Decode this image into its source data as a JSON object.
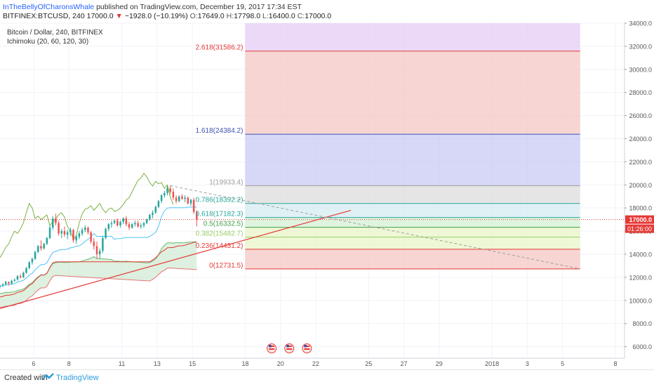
{
  "header": {
    "author": "InTheBellyOfCharonsWhale",
    "published": "published on TradingView.com, December 19, 2017 17:34 EST",
    "symbol": "BITFINEX:BTCUSD, 240",
    "last": "17000.0",
    "change": "−1928.0 (−10.19%)",
    "o_label": "O:",
    "o": "17649.0",
    "h_label": "H:",
    "h": "17798.0",
    "l_label": "L:",
    "l": "16400.0",
    "c_label": "C:",
    "c": "17000.0"
  },
  "legend": {
    "title": "Bitcoin / Dollar, 240, BITFINEX",
    "indicator": "Ichimoku (20, 60, 120, 30)"
  },
  "footer": {
    "created_with": "Created with",
    "brand": "TradingView"
  },
  "colors": {
    "up": "#26a69a",
    "down": "#ef5350",
    "kijun": "#e53935",
    "tenkan": "#4fc3f7",
    "chikou": "#7cb342",
    "cloud": "#c8e6c9",
    "trend": "#e53935"
  },
  "chart_data": {
    "type": "candlestick",
    "y_range": [
      5000,
      34000
    ],
    "y_ticks": [
      "34000.0",
      "32000.0",
      "30000.0",
      "28000.0",
      "26000.0",
      "24000.0",
      "22000.0",
      "20000.0",
      "18000.0",
      "16000.0",
      "14000.0",
      "12000.0",
      "10000.0",
      "8000.0",
      "6000.0"
    ],
    "y_tick_values": [
      34000,
      32000,
      30000,
      28000,
      26000,
      24000,
      22000,
      20000,
      18000,
      16000,
      14000,
      12000,
      10000,
      8000,
      6000
    ],
    "x_ticks": [
      "6",
      "8",
      "11",
      "13",
      "15",
      "18",
      "20",
      "22",
      "25",
      "27",
      "29",
      "2018",
      "3",
      "5",
      "8"
    ],
    "x_tick_dates": [
      "2017-12-06",
      "2017-12-08",
      "2017-12-11",
      "2017-12-13",
      "2017-12-15",
      "2017-12-18",
      "2017-12-20",
      "2017-12-22",
      "2017-12-25",
      "2017-12-27",
      "2017-12-29",
      "2018-01-01",
      "2018-01-03",
      "2018-01-05",
      "2018-01-08"
    ],
    "price_label": "17000.0",
    "countdown_label": "01:26:00",
    "fib_levels": [
      {
        "ratio": "0",
        "price": 12731.5,
        "text": "0(12731.5)",
        "color": "#e53935",
        "fill": "#f4c7c3"
      },
      {
        "ratio": "0.236",
        "price": 14431.2,
        "text": "0.236(14431.2)",
        "color": "#e53935",
        "fill": "#e8f5c8"
      },
      {
        "ratio": "0.382",
        "price": 15482.7,
        "text": "0.382(15482.7)",
        "color": "#9ccc65",
        "fill": "#e8f5c8"
      },
      {
        "ratio": "0.5",
        "price": 16332.5,
        "text": "0.5(16332.5)",
        "color": "#43a047",
        "fill": "#d4f0d4"
      },
      {
        "ratio": "0.618",
        "price": 17182.3,
        "text": "0.618(17182.3)",
        "color": "#26a69a",
        "fill": "#d6ecf2"
      },
      {
        "ratio": "0.786",
        "price": 18392.2,
        "text": "0.786(18392.2)",
        "color": "#26a69a",
        "fill": "#dcdcdc"
      },
      {
        "ratio": "1",
        "price": 19933.4,
        "text": "1(19933.4)",
        "color": "#9e9e9e",
        "fill": "#c9caf4"
      },
      {
        "ratio": "1.618",
        "price": 24384.2,
        "text": "1.618(24384.2)",
        "color": "#3f51b5",
        "fill": "#f4c7c3"
      },
      {
        "ratio": "2.618",
        "price": 31586.2,
        "text": "2.618(31586.2)",
        "color": "#e53935",
        "fill": "#e6ccf5"
      }
    ],
    "fib_top_price": 34000,
    "fib_start_date": "2017-12-18T00:00",
    "fib_end_date": "2018-01-06T00:00",
    "candles_start": "2017-12-04T00:00",
    "candle_hours": 4,
    "ohlc": [
      [
        11200,
        11400,
        11000,
        11300
      ],
      [
        11300,
        11500,
        11200,
        11400
      ],
      [
        11400,
        11700,
        11300,
        11600
      ],
      [
        11600,
        11650,
        11300,
        11450
      ],
      [
        11450,
        11800,
        11400,
        11700
      ],
      [
        11700,
        11900,
        11600,
        11800
      ],
      [
        11800,
        12200,
        11700,
        12100
      ],
      [
        12100,
        12300,
        11900,
        12000
      ],
      [
        12000,
        12500,
        11950,
        12400
      ],
      [
        12400,
        12900,
        12300,
        12800
      ],
      [
        12800,
        13400,
        12700,
        13300
      ],
      [
        13300,
        13700,
        13100,
        13600
      ],
      [
        13600,
        14300,
        13500,
        14200
      ],
      [
        14200,
        14800,
        14100,
        14700
      ],
      [
        14700,
        15200,
        14300,
        14500
      ],
      [
        14500,
        15000,
        14400,
        14900
      ],
      [
        14900,
        15500,
        14800,
        15400
      ],
      [
        15400,
        16500,
        15300,
        16300
      ],
      [
        16300,
        17300,
        16100,
        17100
      ],
      [
        17100,
        17500,
        16500,
        16700
      ],
      [
        16700,
        16900,
        15600,
        15800
      ],
      [
        15800,
        16200,
        15400,
        16000
      ],
      [
        16000,
        16400,
        15500,
        15700
      ],
      [
        15700,
        16100,
        15300,
        15900
      ],
      [
        15900,
        16300,
        15600,
        16100
      ],
      [
        16100,
        16200,
        15000,
        15200
      ],
      [
        15200,
        15700,
        14900,
        15500
      ],
      [
        15500,
        16000,
        15300,
        15800
      ],
      [
        15800,
        16300,
        15600,
        16100
      ],
      [
        16100,
        16500,
        15900,
        16300
      ],
      [
        16300,
        16400,
        15700,
        15900
      ],
      [
        15900,
        16000,
        14900,
        15100
      ],
      [
        15100,
        15400,
        14400,
        14700
      ],
      [
        14700,
        15100,
        13600,
        14000
      ],
      [
        14000,
        14500,
        13600,
        14300
      ],
      [
        14300,
        15600,
        14100,
        15400
      ],
      [
        15400,
        16300,
        15300,
        16200
      ],
      [
        16200,
        16700,
        16000,
        16600
      ],
      [
        16600,
        16900,
        16300,
        16700
      ],
      [
        16700,
        17000,
        16600,
        16900
      ],
      [
        16900,
        17100,
        16400,
        16500
      ],
      [
        16500,
        16900,
        16300,
        16800
      ],
      [
        16800,
        17200,
        16600,
        17100
      ],
      [
        17100,
        17300,
        16400,
        16600
      ],
      [
        16600,
        16800,
        16100,
        16300
      ],
      [
        16300,
        16700,
        16200,
        16600
      ],
      [
        16600,
        16900,
        16400,
        16700
      ],
      [
        16700,
        16900,
        16300,
        16400
      ],
      [
        16400,
        16700,
        16200,
        16500
      ],
      [
        16500,
        16800,
        16300,
        16700
      ],
      [
        16700,
        17100,
        16600,
        17000
      ],
      [
        17000,
        17500,
        16900,
        17400
      ],
      [
        17400,
        17800,
        17100,
        17600
      ],
      [
        17600,
        18200,
        17500,
        18100
      ],
      [
        18100,
        18700,
        18000,
        18600
      ],
      [
        18600,
        19200,
        18400,
        19100
      ],
      [
        19100,
        19500,
        18900,
        19300
      ],
      [
        19300,
        19900,
        19100,
        19700
      ],
      [
        19700,
        19950,
        19200,
        19400
      ],
      [
        19400,
        19700,
        18700,
        18900
      ],
      [
        18900,
        19100,
        18400,
        18600
      ],
      [
        18600,
        19100,
        18500,
        19000
      ],
      [
        19000,
        19200,
        18700,
        18800
      ],
      [
        18800,
        19100,
        18500,
        18900
      ],
      [
        18900,
        19000,
        18300,
        18400
      ],
      [
        18400,
        18800,
        18200,
        18700
      ],
      [
        18700,
        18900,
        17500,
        17649
      ],
      [
        17649,
        17798,
        16400,
        17000
      ]
    ]
  }
}
